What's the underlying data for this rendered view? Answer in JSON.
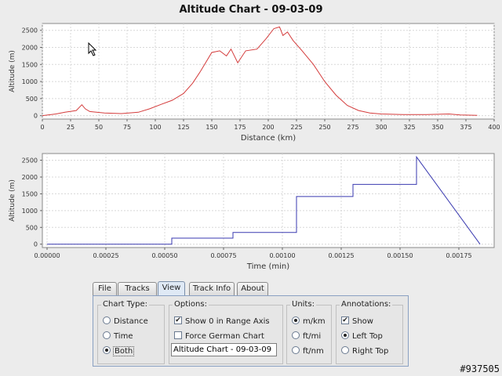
{
  "colors": {
    "line_top": "#d43c3c",
    "line_bottom": "#3a3ab0",
    "panel_border": "#8aa0c2"
  },
  "chart_data": [
    {
      "type": "line",
      "title": "Altitude Chart - 09-03-09",
      "xlabel": "Distance (km)",
      "ylabel": "Altitude (m)",
      "xlim": [
        0,
        400
      ],
      "ylim": [
        -100,
        2700
      ],
      "x_ticks": [
        "0",
        "25",
        "50",
        "75",
        "100",
        "125",
        "150",
        "175",
        "200",
        "225",
        "250",
        "275",
        "300",
        "325",
        "350",
        "375",
        "400"
      ],
      "y_ticks": [
        "0",
        "500",
        "1000",
        "1500",
        "2000",
        "2500"
      ],
      "grid": true,
      "series": [
        {
          "x": [
            0,
            12,
            20,
            30,
            35,
            38,
            42,
            55,
            70,
            85,
            95,
            105,
            115,
            125,
            133,
            140,
            150,
            157,
            163,
            167,
            173,
            180,
            190,
            198,
            205,
            210,
            213,
            217,
            222,
            230,
            240,
            250,
            260,
            270,
            280,
            290,
            300,
            310,
            320,
            340,
            360,
            370,
            385
          ],
          "y": [
            0,
            50,
            100,
            150,
            320,
            200,
            120,
            80,
            60,
            100,
            200,
            330,
            450,
            650,
            950,
            1300,
            1850,
            1900,
            1750,
            1950,
            1550,
            1900,
            1950,
            2250,
            2550,
            2600,
            2350,
            2450,
            2200,
            1900,
            1500,
            1000,
            600,
            300,
            150,
            80,
            50,
            40,
            30,
            30,
            50,
            20,
            10
          ]
        }
      ]
    },
    {
      "type": "line",
      "title": "",
      "xlabel": "Time (min)",
      "ylabel": "Altitude (m)",
      "xlim": [
        -2e-05,
        0.0019
      ],
      "ylim": [
        -100,
        2700
      ],
      "x_ticks": [
        "0.00000",
        "0.00025",
        "0.00050",
        "0.00075",
        "0.00100",
        "0.00125",
        "0.00150",
        "0.00175"
      ],
      "y_ticks": [
        "0",
        "500",
        "1000",
        "1500",
        "2000",
        "2500"
      ],
      "grid": true,
      "series": [
        {
          "x": [
            0,
            0.00053,
            0.00053,
            0.00079,
            0.00079,
            0.00106,
            0.00106,
            0.0013,
            0.0013,
            0.00157,
            0.00157,
            0.00184
          ],
          "y": [
            0,
            0,
            180,
            180,
            350,
            350,
            1420,
            1420,
            1780,
            1780,
            2600,
            0
          ]
        }
      ]
    }
  ],
  "tabs": [
    "File",
    "Tracks",
    "View",
    "Track Info",
    "About"
  ],
  "active_tab": "View",
  "chart_type": {
    "title": "Chart Type:",
    "options": [
      "Distance",
      "Time",
      "Both"
    ],
    "selected": "Both"
  },
  "options": {
    "title": "Options:",
    "show_zero": "Show 0 in Range Axis",
    "german": "Force German Chart",
    "chart_title_value": "Altitude Chart - 09-03-09"
  },
  "units": {
    "title": "Units:",
    "options": [
      "m/km",
      "ft/mi",
      "ft/nm"
    ],
    "selected": "m/km"
  },
  "annotations": {
    "title": "Annotations:",
    "show": "Show",
    "positions": [
      "Left Top",
      "Right Top"
    ],
    "selected": "Left Top"
  },
  "watermark": "#937505"
}
